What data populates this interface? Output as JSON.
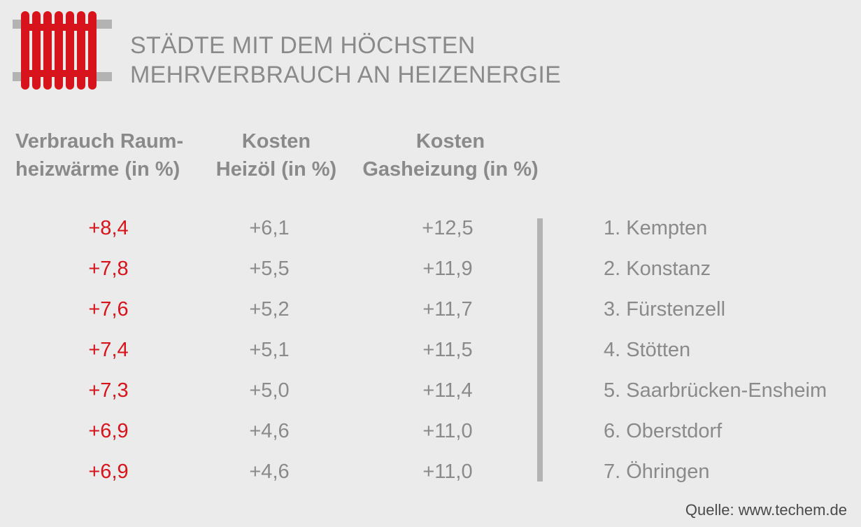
{
  "title": {
    "line1": "STÄDTE MIT DEM HÖCHSTEN",
    "line2": "MEHRVERBRAUCH AN HEIZENERGIE"
  },
  "icon": {
    "name": "radiator-icon",
    "color": "#d7141b",
    "pipe_color": "#b3b3b3"
  },
  "headers": {
    "col1": [
      "Verbrauch Raum-",
      "heizwärme (in %)"
    ],
    "col2": [
      "Kosten",
      "Heizöl (in %)"
    ],
    "col3": [
      "Kosten",
      "Gasheizung (in %)"
    ]
  },
  "colors": {
    "accent": "#d7141b",
    "text": "#8a8a8a",
    "background": "#ebebeb",
    "divider": "#b3b3b3"
  },
  "chart_data": {
    "type": "table",
    "columns": [
      "Verbrauch Raumheizwärme (in %)",
      "Kosten Heizöl (in %)",
      "Kosten Gasheizung (in %)",
      "Stadt"
    ],
    "rows": [
      {
        "verbrauch": "+8,4",
        "heizoel": "+6,1",
        "gas": "+12,5",
        "city": "1. Kempten"
      },
      {
        "verbrauch": "+7,8",
        "heizoel": "+5,5",
        "gas": "+11,9",
        "city": "2. Konstanz"
      },
      {
        "verbrauch": "+7,6",
        "heizoel": "+5,2",
        "gas": "+11,7",
        "city": "3. Fürstenzell"
      },
      {
        "verbrauch": "+7,4",
        "heizoel": "+5,1",
        "gas": "+11,5",
        "city": "4. Stötten"
      },
      {
        "verbrauch": "+7,3",
        "heizoel": "+5,0",
        "gas": "+11,4",
        "city": "5. Saarbrücken-Ensheim"
      },
      {
        "verbrauch": "+6,9",
        "heizoel": "+4,6",
        "gas": "+11,0",
        "city": "6. Oberstdorf"
      },
      {
        "verbrauch": "+6,9",
        "heizoel": "+4,6",
        "gas": "+11,0",
        "city": "7. Öhringen"
      }
    ]
  },
  "source": "Quelle: www.techem.de"
}
